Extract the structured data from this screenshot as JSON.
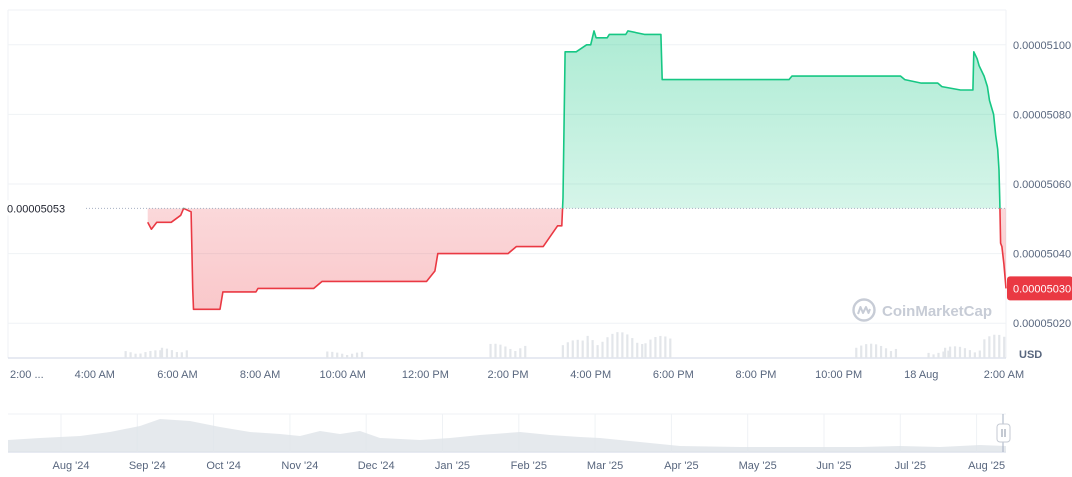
{
  "watermark": "CoinMarketCap",
  "colors": {
    "up": "#16c784",
    "down": "#ea3943",
    "grid": "#eff2f5",
    "text": "#58667e",
    "volume": "#e3e6ea",
    "navigator": "#dfe3e8"
  },
  "chart_data": {
    "type": "area",
    "ylabel": "USD",
    "ylim": [
      5.01e-05,
      5.11e-05
    ],
    "y_ticks": [
      "0.00005020",
      "0.00005040",
      "0.00005060",
      "0.00005080",
      "0.00005100"
    ],
    "y_tick_values": [
      5.02e-05,
      5.04e-05,
      5.06e-05,
      5.08e-05,
      5.1e-05
    ],
    "reference_label": "0.00005053",
    "reference_value": 5.053e-05,
    "current_label": "0.00005030",
    "current_value": 5.03e-05,
    "x_ticks": [
      "2:00 ...",
      "4:00 AM",
      "6:00 AM",
      "8:00 AM",
      "10:00 AM",
      "12:00 PM",
      "2:00 PM",
      "4:00 PM",
      "6:00 PM",
      "8:00 PM",
      "10:00 PM",
      "18 Aug",
      "2:00 AM"
    ],
    "x_tick_hours": [
      -2,
      0,
      2,
      4,
      6,
      8,
      10,
      12,
      14,
      16,
      18,
      20,
      22
    ],
    "x_range_hours": [
      -2.1,
      22.05
    ],
    "x_note_hours_relative_to": "4:00 AM",
    "series": [
      {
        "x": [
          1.28,
          1.37,
          1.5,
          1.58,
          1.62,
          1.85,
          2.08,
          2.15,
          2.33,
          2.37,
          2.39,
          3.03,
          3.1,
          3.3,
          3.9,
          3.95,
          4.3,
          5.3,
          5.5,
          6.05,
          6.9,
          8.03,
          8.23,
          8.3,
          10.0,
          10.2,
          10.4,
          10.55,
          10.85,
          11.2,
          11.3,
          11.33,
          11.38,
          11.65,
          11.9,
          12.0,
          12.08,
          12.13,
          12.4,
          12.45,
          12.85,
          12.9,
          13.3,
          13.7,
          13.73,
          14.5,
          16.8,
          16.87,
          19.5,
          19.6,
          20.0,
          20.2,
          20.4,
          20.5,
          20.95,
          21.25,
          21.27,
          21.35,
          21.4,
          21.52,
          21.6,
          21.65,
          21.75,
          21.8,
          21.85,
          21.88,
          21.9,
          21.92,
          21.95,
          22.0,
          22.05
        ],
        "y": [
          5.049e-05,
          5.047e-05,
          5.049e-05,
          5.049e-05,
          5.049e-05,
          5.049e-05,
          5.051e-05,
          5.053e-05,
          5.052e-05,
          5.03e-05,
          5.024e-05,
          5.024e-05,
          5.029e-05,
          5.029e-05,
          5.029e-05,
          5.03e-05,
          5.03e-05,
          5.03e-05,
          5.032e-05,
          5.032e-05,
          5.032e-05,
          5.032e-05,
          5.035e-05,
          5.04e-05,
          5.04e-05,
          5.042e-05,
          5.042e-05,
          5.042e-05,
          5.042e-05,
          5.048e-05,
          5.048e-05,
          5.056e-05,
          5.098e-05,
          5.098e-05,
          5.1e-05,
          5.1e-05,
          5.104e-05,
          5.102e-05,
          5.102e-05,
          5.103e-05,
          5.103e-05,
          5.104e-05,
          5.103e-05,
          5.103e-05,
          5.09e-05,
          5.09e-05,
          5.09e-05,
          5.091e-05,
          5.091e-05,
          5.09e-05,
          5.089e-05,
          5.089e-05,
          5.089e-05,
          5.088e-05,
          5.087e-05,
          5.087e-05,
          5.098e-05,
          5.096e-05,
          5.094e-05,
          5.091e-05,
          5.088e-05,
          5.084e-05,
          5.08e-05,
          5.074e-05,
          5.07e-05,
          5.064e-05,
          5.055e-05,
          5.043e-05,
          5.042e-05,
          5.037e-05,
          5.03e-05
        ]
      }
    ],
    "navigator": {
      "x_ticks": [
        "Aug '24",
        "Sep '24",
        "Oct '24",
        "Nov '24",
        "Dec '24",
        "Jan '25",
        "Feb '25",
        "Mar '25",
        "Apr '25",
        "May '25",
        "Jun '25",
        "Jul '25",
        "Aug '25"
      ]
    }
  }
}
